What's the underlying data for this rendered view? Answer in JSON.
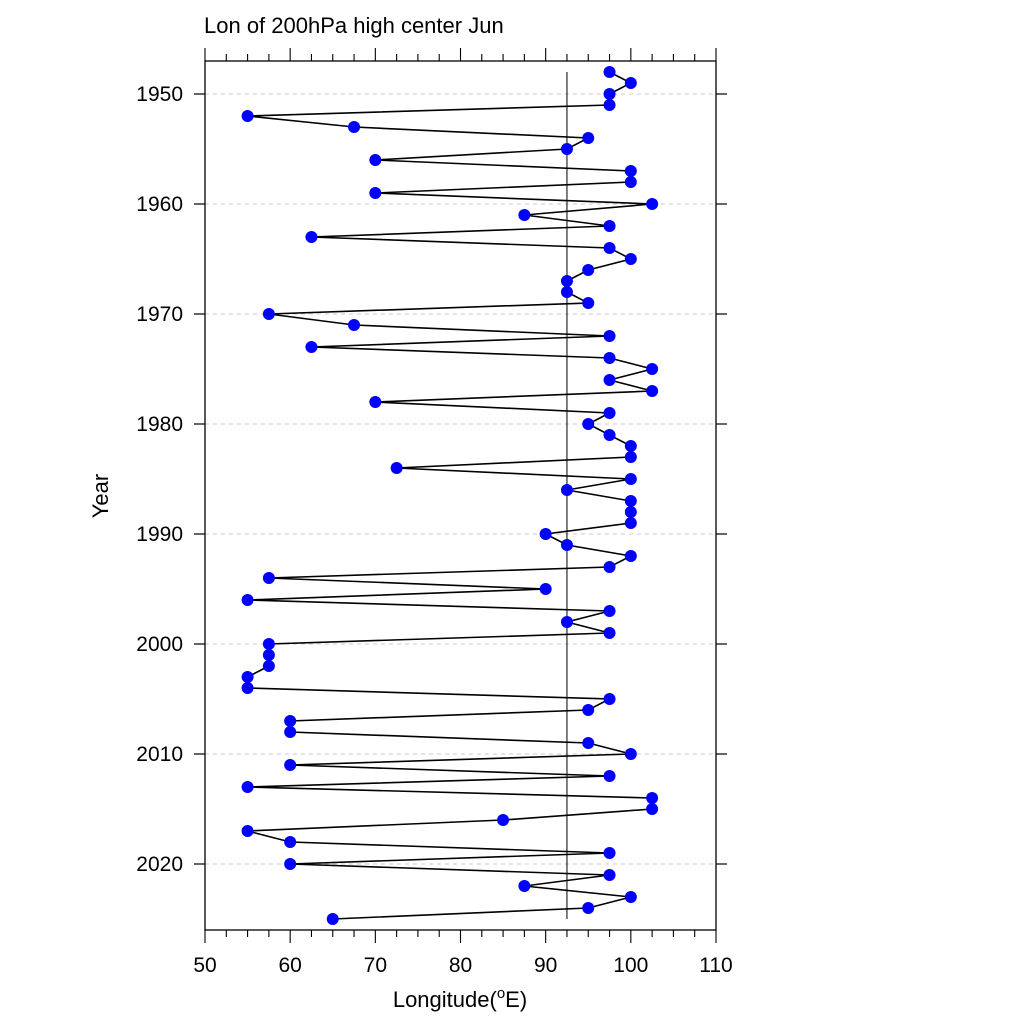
{
  "chart_data": {
    "type": "line",
    "title": "Lon of 200hPa high center Jun",
    "xlabel": "Longitude(",
    "xlabel_sup": "o",
    "xlabel_tail": "E)",
    "ylabel": "Year",
    "xlim": [
      50,
      110
    ],
    "ylim": [
      1947,
      2026
    ],
    "y_reversed": true,
    "x_ticks": [
      50,
      60,
      70,
      80,
      90,
      100,
      110
    ],
    "y_ticks": [
      1950,
      1960,
      1970,
      1980,
      1990,
      2000,
      2010,
      2020
    ],
    "grid": "horizontal dashed at y ticks",
    "reference_line_x": 92.5,
    "colors": {
      "line": "#000000",
      "marker": "#0000ff",
      "grid": "#c8c8c8"
    },
    "series": [
      {
        "points": [
          [
            1948,
            97.5
          ],
          [
            1949,
            100
          ],
          [
            1950,
            97.5
          ],
          [
            1951,
            97.5
          ],
          [
            1952,
            55
          ],
          [
            1953,
            67.5
          ],
          [
            1954,
            95
          ],
          [
            1955,
            92.5
          ],
          [
            1956,
            70
          ],
          [
            1957,
            100
          ],
          [
            1958,
            100
          ],
          [
            1959,
            70
          ],
          [
            1960,
            102.5
          ],
          [
            1961,
            87.5
          ],
          [
            1962,
            97.5
          ],
          [
            1963,
            62.5
          ],
          [
            1964,
            97.5
          ],
          [
            1965,
            100
          ],
          [
            1966,
            95
          ],
          [
            1967,
            92.5
          ],
          [
            1968,
            92.5
          ],
          [
            1969,
            95
          ],
          [
            1970,
            57.5
          ],
          [
            1971,
            67.5
          ],
          [
            1972,
            97.5
          ],
          [
            1973,
            62.5
          ],
          [
            1974,
            97.5
          ],
          [
            1975,
            102.5
          ],
          [
            1976,
            97.5
          ],
          [
            1977,
            102.5
          ],
          [
            1978,
            70
          ],
          [
            1979,
            97.5
          ],
          [
            1980,
            95
          ],
          [
            1981,
            97.5
          ],
          [
            1982,
            100
          ],
          [
            1983,
            100
          ],
          [
            1984,
            72.5
          ],
          [
            1985,
            100
          ],
          [
            1986,
            92.5
          ],
          [
            1987,
            100
          ],
          [
            1988,
            100
          ],
          [
            1989,
            100
          ],
          [
            1990,
            90
          ],
          [
            1991,
            92.5
          ],
          [
            1992,
            100
          ],
          [
            1993,
            97.5
          ],
          [
            1994,
            57.5
          ],
          [
            1995,
            90
          ],
          [
            1996,
            55
          ],
          [
            1997,
            97.5
          ],
          [
            1998,
            92.5
          ],
          [
            1999,
            97.5
          ],
          [
            2000,
            57.5
          ],
          [
            2001,
            57.5
          ],
          [
            2002,
            57.5
          ],
          [
            2003,
            55
          ],
          [
            2004,
            55
          ],
          [
            2005,
            97.5
          ],
          [
            2006,
            95
          ],
          [
            2007,
            60
          ],
          [
            2008,
            60
          ],
          [
            2009,
            95
          ],
          [
            2010,
            100
          ],
          [
            2011,
            60
          ],
          [
            2012,
            97.5
          ],
          [
            2013,
            55
          ],
          [
            2014,
            102.5
          ],
          [
            2015,
            102.5
          ],
          [
            2016,
            85
          ],
          [
            2017,
            55
          ],
          [
            2018,
            60
          ],
          [
            2019,
            97.5
          ],
          [
            2020,
            60
          ],
          [
            2021,
            97.5
          ],
          [
            2022,
            87.5
          ],
          [
            2023,
            100
          ],
          [
            2024,
            95
          ],
          [
            2025,
            65
          ]
        ]
      }
    ]
  }
}
